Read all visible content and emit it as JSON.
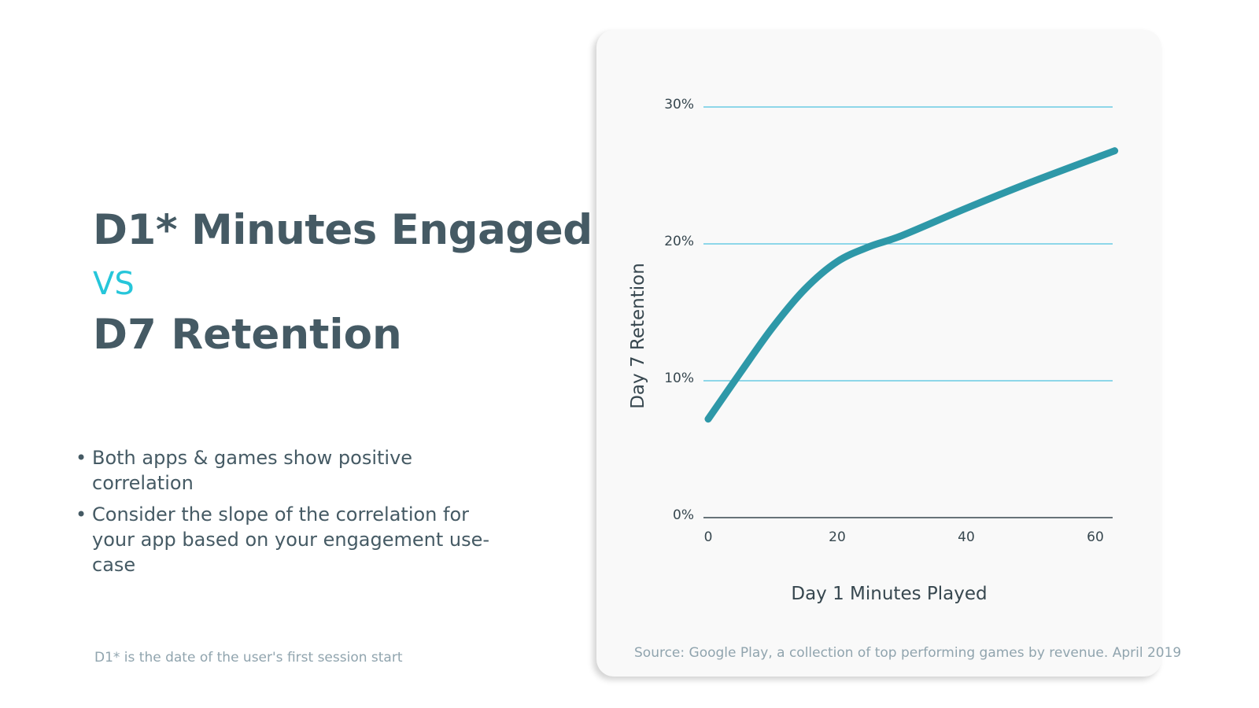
{
  "slide": {
    "title_line1": "D1* Minutes Engaged",
    "title_vs": "VS",
    "title_line2": "D7 Retention",
    "bullets": [
      "Both apps & games show positive correlation",
      "Consider the slope of the correlation for your app based on your engagement use-case"
    ],
    "bullet_glyph": "•",
    "footnote": "D1* is the date of the user's first session start",
    "source": "Source: Google Play, a collection of top performing games by revenue. April 2019"
  },
  "colors": {
    "title": "#455a64",
    "accent": "#26c6da",
    "line": "#2e98a8",
    "gridline": "#4fc3e0",
    "muted": "#90a4ae",
    "card_bg": "#f9f9f9"
  },
  "chart_data": {
    "type": "line",
    "title": "",
    "xlabel": "Day 1 Minutes Played",
    "ylabel": "Day 7 Retention",
    "xlim": [
      0,
      63
    ],
    "ylim": [
      0,
      30
    ],
    "xticks": [
      0,
      20,
      40,
      60
    ],
    "xtick_labels": [
      "0",
      "20",
      "40",
      "60"
    ],
    "yticks": [
      0,
      10,
      20,
      30
    ],
    "ytick_labels": [
      "0%",
      "10%",
      "20%",
      "30%"
    ],
    "grid": "horizontal",
    "legend": "none",
    "series": [
      {
        "x": [
          0,
          5,
          10,
          15,
          20,
          25,
          30,
          40,
          50,
          63
        ],
        "y": [
          7.2,
          10.6,
          13.9,
          16.7,
          18.7,
          19.8,
          20.6,
          22.6,
          24.5,
          26.8
        ]
      }
    ]
  }
}
